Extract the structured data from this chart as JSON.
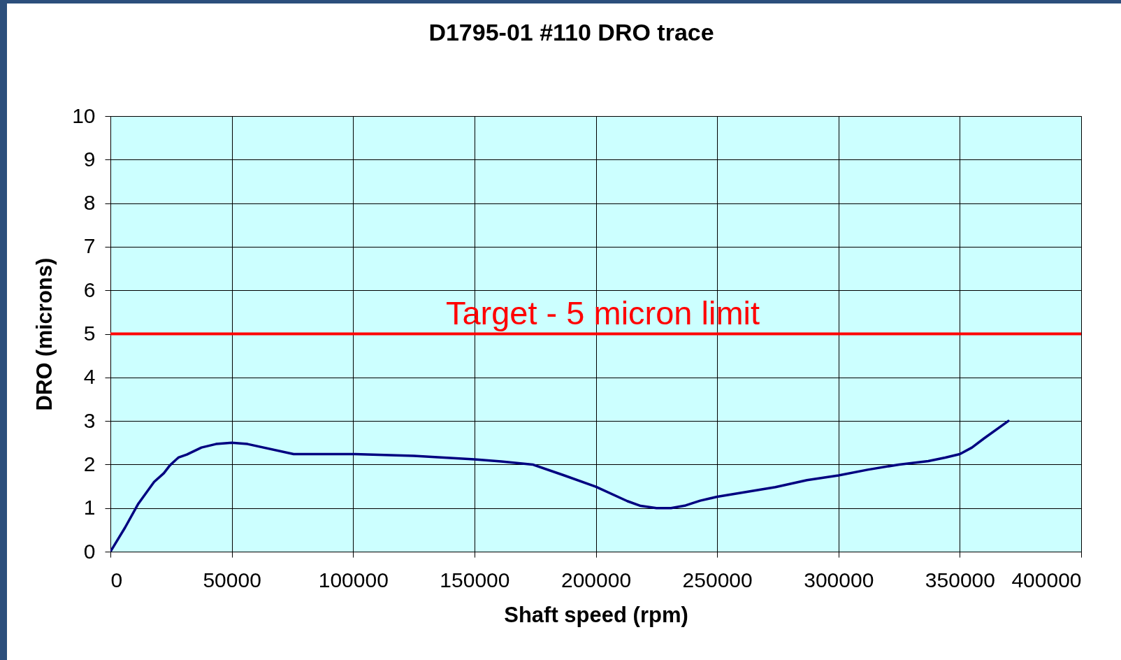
{
  "chart_data": {
    "type": "line",
    "title": "D1795-01 #110 DRO trace",
    "xlabel": "Shaft speed (rpm)",
    "ylabel": "DRO (microns)",
    "x": [
      0,
      6000,
      11500,
      18000,
      22000,
      24500,
      28000,
      31500,
      37500,
      43500,
      50000,
      56500,
      75500,
      100000,
      125000,
      150000,
      161000,
      174000,
      187000,
      200000,
      213000,
      218500,
      225000,
      231000,
      237000,
      243000,
      250000,
      274000,
      287000,
      300000,
      312000,
      325000,
      337000,
      344000,
      350000,
      355000,
      360000,
      370000
    ],
    "series": [
      {
        "color": "#000080",
        "values": [
          0,
          0.55,
          1.1,
          1.6,
          1.8,
          1.98,
          2.16,
          2.23,
          2.39,
          2.47,
          2.5,
          2.47,
          2.24,
          2.24,
          2.2,
          2.12,
          2.07,
          2.0,
          1.75,
          1.49,
          1.16,
          1.05,
          1.0,
          1.0,
          1.06,
          1.17,
          1.26,
          1.48,
          1.64,
          1.75,
          1.88,
          2.0,
          2.08,
          2.16,
          2.24,
          2.39,
          2.6,
          3.0
        ]
      }
    ],
    "xlim": [
      0,
      400000
    ],
    "xticks": [
      0,
      50000,
      100000,
      150000,
      200000,
      250000,
      300000,
      350000,
      400000
    ],
    "ylim": [
      0,
      10
    ],
    "yticks": [
      0,
      1,
      2,
      3,
      4,
      5,
      6,
      7,
      8,
      9,
      10
    ],
    "grid": true,
    "ref_lines": [
      {
        "axis": "y",
        "value": 5,
        "label": "Target - 5 micron limit",
        "color": "#ff0000"
      }
    ]
  }
}
